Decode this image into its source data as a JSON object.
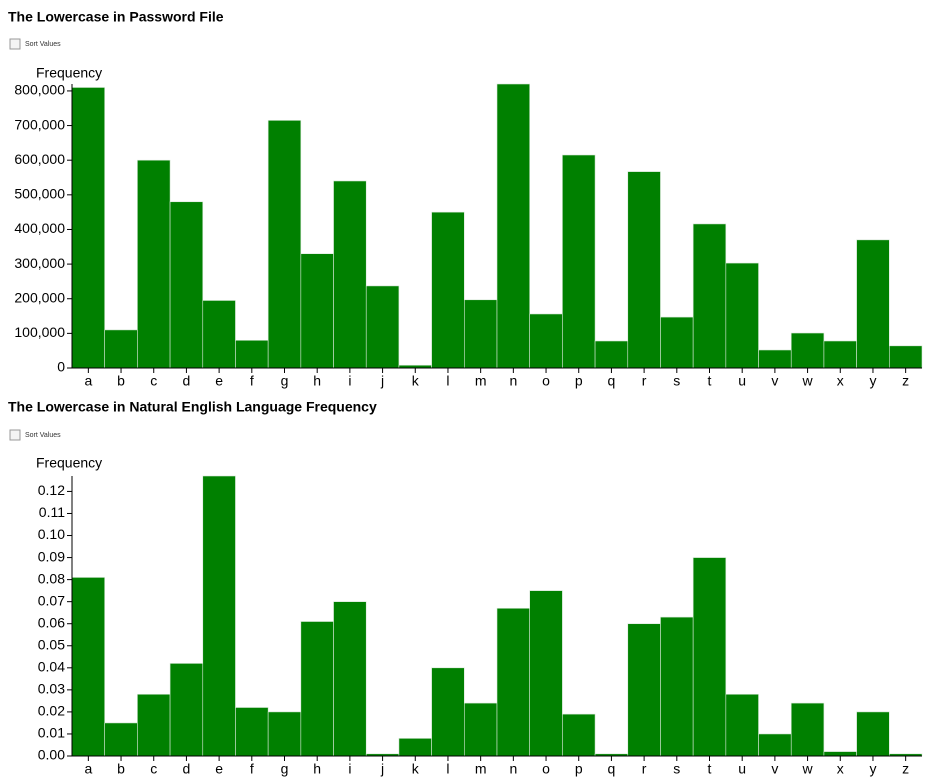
{
  "chart_data": [
    {
      "type": "bar",
      "title": "The Lowercase in Password File",
      "sort_label": "Sort Values",
      "y_label": "Frequency",
      "categories": [
        "a",
        "b",
        "c",
        "d",
        "e",
        "f",
        "g",
        "h",
        "i",
        "j",
        "k",
        "l",
        "m",
        "n",
        "o",
        "p",
        "q",
        "r",
        "s",
        "t",
        "u",
        "v",
        "w",
        "x",
        "y",
        "z"
      ],
      "values": [
        810000,
        110000,
        600000,
        480000,
        195000,
        80000,
        715000,
        330000,
        540000,
        237000,
        8000,
        450000,
        197000,
        820000,
        156000,
        615000,
        78000,
        567000,
        147000,
        416000,
        303000,
        52000,
        101000,
        78000,
        370000,
        64000
      ],
      "color": "#008000",
      "ylim": [
        0,
        820000
      ],
      "yticks": [
        0,
        {
          "value": 100000,
          "label": "100,000"
        },
        {
          "value": 200000,
          "label": "200,000"
        },
        {
          "value": 300000,
          "label": "300,000"
        },
        {
          "value": 400000,
          "label": "400,000"
        },
        {
          "value": 500000,
          "label": "500,000"
        },
        {
          "value": 600000,
          "label": "600,000"
        },
        {
          "value": 700000,
          "label": "700,000"
        },
        {
          "value": 800000,
          "label": "800,000"
        }
      ]
    },
    {
      "type": "bar",
      "title": "The Lowercase in Natural English Language Frequency",
      "sort_label": "Sort Values",
      "y_label": "Frequency",
      "categories": [
        "a",
        "b",
        "c",
        "d",
        "e",
        "f",
        "g",
        "h",
        "i",
        "j",
        "k",
        "l",
        "m",
        "n",
        "o",
        "p",
        "q",
        "r",
        "s",
        "t",
        "u",
        "v",
        "w",
        "x",
        "y",
        "z"
      ],
      "values": [
        0.081,
        0.015,
        0.028,
        0.042,
        0.127,
        0.022,
        0.02,
        0.061,
        0.07,
        0.001,
        0.008,
        0.04,
        0.024,
        0.067,
        0.075,
        0.019,
        0.001,
        0.06,
        0.063,
        0.09,
        0.028,
        0.01,
        0.024,
        0.002,
        0.02,
        0.001
      ],
      "color": "#008000",
      "ylim": [
        0,
        0.127
      ],
      "yticks": [
        {
          "value": 0,
          "label": "0.00"
        },
        0.01,
        0.02,
        0.03,
        0.04,
        0.05,
        0.06,
        0.07,
        0.08,
        0.09,
        {
          "value": 0.1,
          "label": "0.10"
        },
        0.11,
        0.12
      ]
    }
  ]
}
